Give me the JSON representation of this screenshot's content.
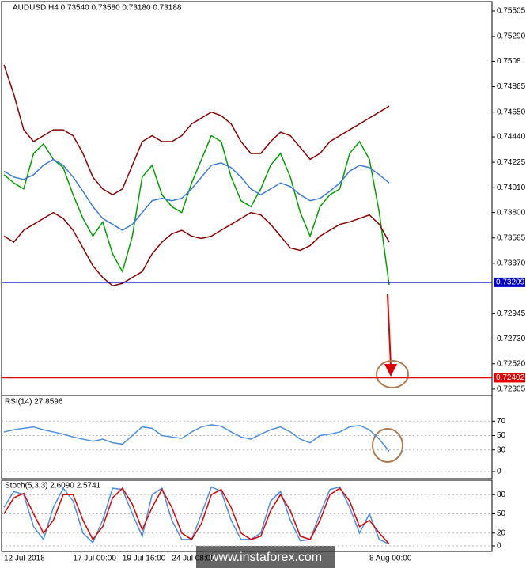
{
  "chart_data": [
    {
      "type": "line",
      "title": "AUDUSD,H4  0.73540 0.73580 0.73180 0.73188",
      "categories": [
        "12 Jul 2018",
        null,
        null,
        null,
        null,
        null,
        null,
        "17 Jul 00:00",
        null,
        null,
        null,
        null,
        "19 Jul 16:00",
        null,
        null,
        null,
        null,
        "24 Jul 08:00",
        null,
        null,
        null,
        null,
        null,
        null,
        null,
        null,
        null,
        null,
        null,
        null,
        null,
        null,
        null,
        null,
        null,
        null,
        null,
        "8 Aug 00:00",
        null,
        null
      ],
      "series": [
        {
          "color": "#00a000",
          "values": [
            0.7412,
            0.7405,
            0.74,
            0.743,
            0.7438,
            0.7425,
            0.7418,
            0.7395,
            0.7375,
            0.736,
            0.7372,
            0.7345,
            0.733,
            0.736,
            0.741,
            0.742,
            0.7395,
            0.7385,
            0.738,
            0.7405,
            0.7425,
            0.7445,
            0.744,
            0.741,
            0.739,
            0.7385,
            0.74,
            0.742,
            0.743,
            0.741,
            0.738,
            0.736,
            0.7385,
            0.7395,
            0.74,
            0.743,
            0.744,
            0.7425,
            0.738,
            0.73188
          ]
        },
        {
          "color": "#8b0000",
          "values": [
            0.7505,
            0.748,
            0.745,
            0.744,
            0.7445,
            0.745,
            0.745,
            0.7445,
            0.743,
            0.741,
            0.74,
            0.7395,
            0.74,
            0.742,
            0.744,
            0.7445,
            0.744,
            0.744,
            0.7445,
            0.7455,
            0.746,
            0.7465,
            0.7462,
            0.7455,
            0.744,
            0.743,
            0.743,
            0.744,
            0.7448,
            0.7445,
            0.7435,
            0.7425,
            0.743,
            0.744,
            0.7445,
            0.745,
            0.7455,
            0.746,
            0.7465,
            0.747
          ]
        },
        {
          "color": "#8b0000",
          "values": [
            0.736,
            0.7355,
            0.7365,
            0.737,
            0.7375,
            0.738,
            0.7375,
            0.7365,
            0.735,
            0.7335,
            0.7325,
            0.7318,
            0.732,
            0.7325,
            0.733,
            0.7345,
            0.7355,
            0.7362,
            0.7365,
            0.736,
            0.7358,
            0.736,
            0.7365,
            0.737,
            0.7375,
            0.738,
            0.7378,
            0.737,
            0.736,
            0.735,
            0.7348,
            0.7352,
            0.736,
            0.7365,
            0.737,
            0.7372,
            0.7375,
            0.7378,
            0.737,
            0.7355
          ]
        },
        {
          "color": "#3a7bd5",
          "values": [
            0.7415,
            0.741,
            0.7408,
            0.7412,
            0.742,
            0.7425,
            0.742,
            0.741,
            0.7398,
            0.7385,
            0.7375,
            0.737,
            0.7365,
            0.737,
            0.738,
            0.739,
            0.7392,
            0.739,
            0.7392,
            0.74,
            0.741,
            0.742,
            0.7422,
            0.7418,
            0.741,
            0.74,
            0.7395,
            0.74,
            0.7405,
            0.7402,
            0.7395,
            0.739,
            0.7392,
            0.7398,
            0.7405,
            0.7415,
            0.742,
            0.7418,
            0.7412,
            0.7405
          ]
        }
      ],
      "ylim": [
        0.72251,
        0.75585
      ],
      "yticks": [
        0.75505,
        {
          "value": 0.7529,
          "label": "0.75290"
        },
        0.7508,
        0.74865,
        {
          "value": 0.7465,
          "label": "0.74650"
        },
        {
          "value": 0.7444,
          "label": "0.74440"
        },
        0.74225,
        {
          "value": 0.7401,
          "label": "0.74010"
        },
        {
          "value": 0.738,
          "label": "0.73800"
        },
        0.73585,
        {
          "value": 0.7337,
          "label": "0.73370"
        },
        0.72945,
        {
          "value": 0.7273,
          "label": "0.72730"
        },
        {
          "value": 0.7252,
          "label": "0.72520"
        },
        0.72305
      ],
      "hlines": [
        0.73209,
        0.72402
      ],
      "hline_colors": [
        "#0000cc",
        "#e00000"
      ],
      "watermark": "www.instaforex.com"
    },
    {
      "type": "line",
      "title": "RSI(14) 27.8596",
      "series": [
        {
          "color": "#4a90e2",
          "values": [
            55,
            58,
            60,
            62,
            58,
            55,
            52,
            48,
            45,
            42,
            45,
            40,
            38,
            50,
            62,
            60,
            50,
            48,
            46,
            55,
            62,
            65,
            63,
            55,
            48,
            45,
            52,
            58,
            62,
            55,
            45,
            40,
            50,
            52,
            55,
            62,
            64,
            58,
            45,
            28
          ]
        }
      ],
      "ylim": [
        0,
        100
      ],
      "yticks": [
        70,
        50,
        30,
        0
      ]
    },
    {
      "type": "line",
      "title": "Stoch(5,3,3) 2.6090 2.5741",
      "series": [
        {
          "color": "#4a90e2",
          "values": [
            60,
            85,
            80,
            30,
            10,
            60,
            90,
            70,
            20,
            5,
            40,
            90,
            88,
            50,
            15,
            80,
            90,
            40,
            10,
            10,
            50,
            92,
            85,
            40,
            10,
            10,
            20,
            70,
            85,
            40,
            8,
            10,
            50,
            88,
            92,
            60,
            20,
            50,
            10,
            3
          ]
        },
        {
          "color": "#e00000",
          "values": [
            50,
            75,
            82,
            50,
            20,
            40,
            80,
            80,
            40,
            10,
            30,
            75,
            90,
            65,
            25,
            60,
            88,
            60,
            20,
            10,
            35,
            80,
            88,
            60,
            20,
            10,
            15,
            55,
            80,
            55,
            15,
            10,
            40,
            80,
            90,
            70,
            30,
            40,
            20,
            3
          ]
        }
      ],
      "ylim": [
        0,
        100
      ],
      "yticks": [
        80,
        50,
        20,
        0
      ]
    }
  ]
}
